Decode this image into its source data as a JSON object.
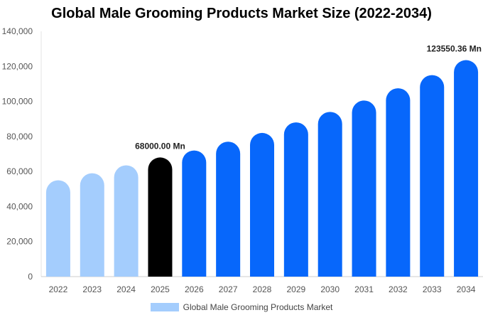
{
  "chart_data": {
    "type": "bar",
    "title": "Global Male Grooming Products Market Size (2022-2034)",
    "xlabel": "",
    "ylabel": "",
    "categories": [
      "2022",
      "2023",
      "2024",
      "2025",
      "2026",
      "2027",
      "2028",
      "2029",
      "2030",
      "2031",
      "2032",
      "2033",
      "2034"
    ],
    "series": [
      {
        "name": "Global Male Grooming Products Market",
        "values": [
          55000,
          59000,
          63500,
          68000,
          72000,
          77000,
          82000,
          88000,
          94000,
          100500,
          107500,
          115000,
          123550.36
        ]
      }
    ],
    "ylim": [
      0,
      140000
    ],
    "yticks": [
      "0",
      "20,000",
      "40,000",
      "60,000",
      "80,000",
      "100,000",
      "120,000",
      "140,000"
    ],
    "data_labels": [
      {
        "category": "2025",
        "text": "68000.00 Mn"
      },
      {
        "category": "2034",
        "text": "123550.36 Mn"
      }
    ],
    "colors": {
      "historical": "#a4cdfd",
      "current": "#000000",
      "forecast": "#0767fb"
    },
    "bar_color_roles": [
      "historical",
      "historical",
      "historical",
      "current",
      "forecast",
      "forecast",
      "forecast",
      "forecast",
      "forecast",
      "forecast",
      "forecast",
      "forecast",
      "forecast"
    ],
    "grid": false,
    "legend_position": "bottom"
  }
}
